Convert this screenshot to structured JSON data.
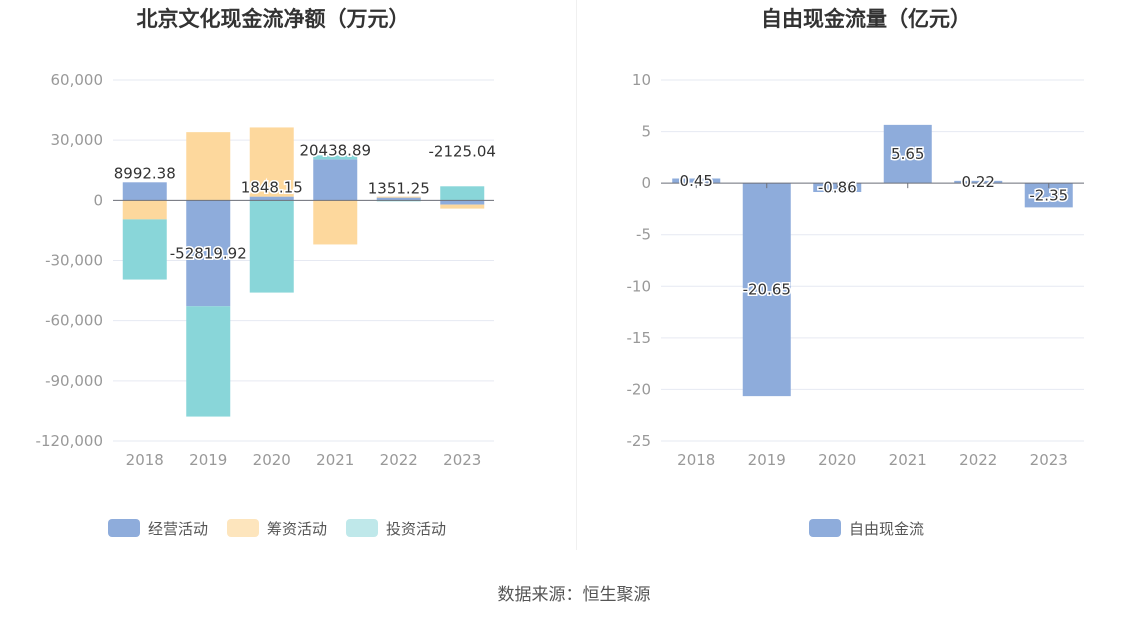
{
  "source": "数据来源：恒生聚源",
  "colors": {
    "operating": "#8eacdb",
    "financing": "#fdd89d",
    "investing": "#89d6d9",
    "financing_legend": "#fde5bd",
    "investing_legend": "#bfe8ea",
    "fcf": "#8eacdb"
  },
  "chart_data": [
    {
      "type": "bar",
      "stacked": true,
      "title": "北京文化现金流净额（万元）",
      "categories": [
        "2018",
        "2019",
        "2020",
        "2021",
        "2022",
        "2023"
      ],
      "ylim": [
        -120000,
        60000
      ],
      "yticks": [
        60000,
        30000,
        0,
        -30000,
        -60000,
        -90000,
        -120000
      ],
      "ytick_labels": [
        "60,000",
        "30,000",
        "0",
        "-30,000",
        "-60,000",
        "-90,000",
        "-120,000"
      ],
      "grid": true,
      "legend_position": "bottom",
      "series": [
        {
          "name": "经营活动",
          "values": [
            8992.38,
            -52819.92,
            1848.15,
            20438.89,
            1351.25,
            -2125.04
          ]
        },
        {
          "name": "筹资活动",
          "values": [
            -9500,
            34000,
            34500,
            -22000,
            500,
            -2000
          ]
        },
        {
          "name": "投资活动",
          "values": [
            -30000,
            -55000,
            -46000,
            2000,
            -500,
            7000
          ]
        }
      ],
      "data_labels": [
        "8992.38",
        "-52819.92",
        "1848.15",
        "20438.89",
        "1351.25",
        "-2125.04"
      ]
    },
    {
      "type": "bar",
      "title": "自由现金流量（亿元）",
      "categories": [
        "2018",
        "2019",
        "2020",
        "2021",
        "2022",
        "2023"
      ],
      "ylim": [
        -25,
        10
      ],
      "yticks": [
        10,
        5,
        0,
        -5,
        -10,
        -15,
        -20,
        -25
      ],
      "ytick_labels": [
        "10",
        "5",
        "0",
        "-5",
        "-10",
        "-15",
        "-20",
        "-25"
      ],
      "grid": true,
      "legend_position": "bottom",
      "series": [
        {
          "name": "自由现金流",
          "values": [
            0.45,
            -20.65,
            -0.86,
            5.65,
            0.22,
            -2.35
          ]
        }
      ],
      "data_labels": [
        "0.45",
        "-20.65",
        "-0.86",
        "5.65",
        "0.22",
        "-2.35"
      ]
    }
  ]
}
